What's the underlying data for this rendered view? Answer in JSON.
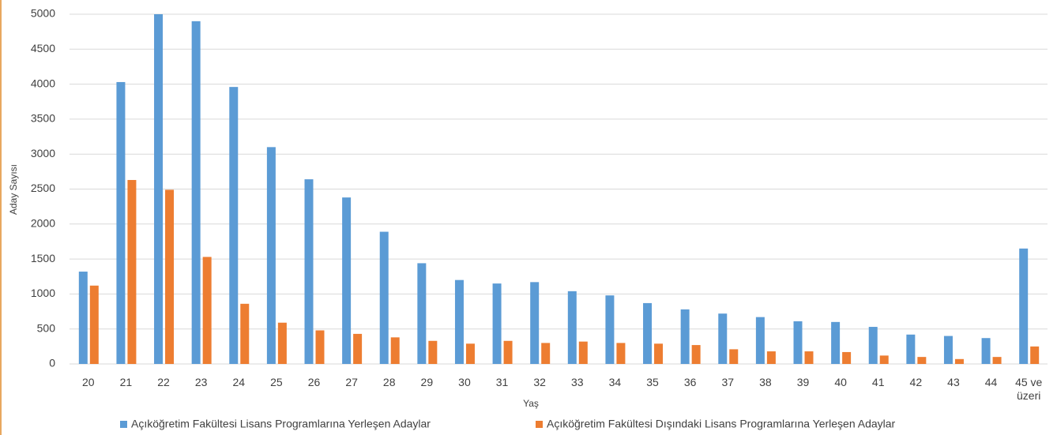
{
  "chart_data": {
    "type": "bar",
    "x_label": "Yaş",
    "y_label": "Aday Sayısı",
    "categories": [
      "20",
      "21",
      "22",
      "23",
      "24",
      "25",
      "26",
      "27",
      "28",
      "29",
      "30",
      "31",
      "32",
      "33",
      "34",
      "35",
      "36",
      "37",
      "38",
      "39",
      "40",
      "41",
      "42",
      "43",
      "44",
      "45 ve üzeri"
    ],
    "series": [
      {
        "name": "Açıköğretim Fakültesi Lisans Programlarına Yerleşen Adaylar",
        "color": "#5b9bd5",
        "values": [
          1320,
          4030,
          5000,
          4900,
          3960,
          3100,
          2640,
          2380,
          1890,
          1440,
          1200,
          1150,
          1170,
          1040,
          980,
          870,
          780,
          720,
          670,
          610,
          600,
          530,
          420,
          400,
          370,
          1650
        ]
      },
      {
        "name": "Açıköğretim Fakültesi Dışındaki Lisans Programlarına Yerleşen Adaylar",
        "color": "#ed7d31",
        "values": [
          1120,
          2630,
          2490,
          1530,
          860,
          590,
          480,
          430,
          380,
          330,
          290,
          330,
          300,
          320,
          300,
          290,
          270,
          210,
          180,
          180,
          170,
          120,
          100,
          70,
          100,
          250
        ]
      }
    ],
    "ylim": [
      0,
      5000
    ],
    "yticks": [
      0,
      500,
      1000,
      1500,
      2000,
      2500,
      3000,
      3500,
      4000,
      4500,
      5000
    ],
    "grid": true
  }
}
